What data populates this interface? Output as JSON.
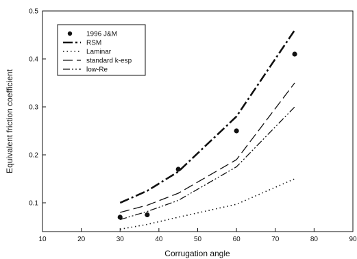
{
  "chart_data": {
    "type": "line",
    "title": "",
    "xlabel": "Corrugation angle",
    "ylabel": "Equivalent friction coefficient",
    "xlim": [
      10,
      90
    ],
    "ylim": [
      0.04,
      0.5
    ],
    "x_ticks": [
      10,
      20,
      30,
      40,
      50,
      60,
      70,
      80,
      90
    ],
    "y_ticks": [
      0.1,
      0.2,
      0.3,
      0.4,
      0.5
    ],
    "y_tick_labels": [
      "0.1",
      "0.2",
      "0.3",
      "0.4",
      "0.5"
    ],
    "grid": false,
    "legend_position": "top-left",
    "series": [
      {
        "name": "1996 J&M",
        "kind": "markers",
        "x": [
          30,
          37,
          45,
          60,
          75
        ],
        "y": [
          0.07,
          0.075,
          0.17,
          0.25,
          0.41
        ]
      },
      {
        "name": "RSM",
        "kind": "line",
        "dash": "dashdot-heavy",
        "x": [
          30,
          37,
          45,
          60,
          75
        ],
        "y": [
          0.1,
          0.125,
          0.165,
          0.28,
          0.46
        ]
      },
      {
        "name": "Laminar",
        "kind": "line",
        "dash": "dotted",
        "x": [
          30,
          37,
          45,
          60,
          75
        ],
        "y": [
          0.045,
          0.055,
          0.07,
          0.097,
          0.15
        ]
      },
      {
        "name": "standard k-esp",
        "kind": "line",
        "dash": "longdash",
        "x": [
          30,
          37,
          45,
          60,
          75
        ],
        "y": [
          0.08,
          0.095,
          0.12,
          0.19,
          0.35
        ]
      },
      {
        "name": "low-Re",
        "kind": "line",
        "dash": "dashdotdot",
        "x": [
          30,
          37,
          45,
          60,
          75
        ],
        "y": [
          0.065,
          0.082,
          0.105,
          0.175,
          0.3
        ]
      }
    ]
  }
}
